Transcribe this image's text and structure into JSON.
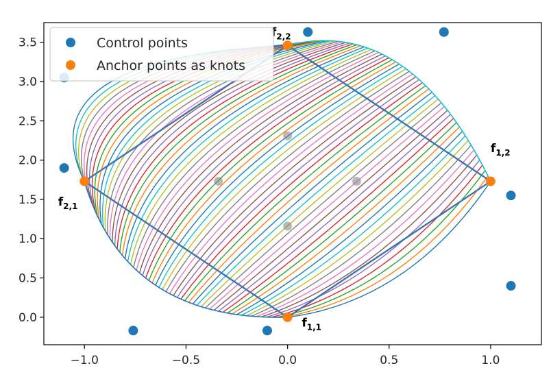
{
  "chart_data": {
    "type": "scatter",
    "title": "",
    "xlabel": "",
    "ylabel": "",
    "xlim": [
      -1.2,
      1.25
    ],
    "ylim": [
      -0.35,
      3.75
    ],
    "x_ticks": [
      -1.0,
      -0.5,
      0.0,
      0.5,
      1.0
    ],
    "x_tick_labels": [
      "−1.0",
      "−0.5",
      "0.0",
      "0.5",
      "1.0"
    ],
    "y_ticks": [
      0.0,
      0.5,
      1.0,
      1.5,
      2.0,
      2.5,
      3.0,
      3.5
    ],
    "y_tick_labels": [
      "0.0",
      "0.5",
      "1.0",
      "1.5",
      "2.0",
      "2.5",
      "3.0",
      "3.5"
    ],
    "grid": false,
    "legend": {
      "placement": "top-left",
      "entries": [
        {
          "label": "Control points",
          "color": "#1f77b4"
        },
        {
          "label": "Anchor points as knots",
          "color": "#ff7f0e"
        }
      ]
    },
    "series": [
      {
        "name": "Control points",
        "color": "#1f77b4",
        "points": [
          [
            -1.1,
            3.05
          ],
          [
            -1.1,
            1.9
          ],
          [
            -0.76,
            -0.17
          ],
          [
            -0.1,
            -0.17
          ],
          [
            0.1,
            3.63
          ],
          [
            0.77,
            3.63
          ],
          [
            1.1,
            1.55
          ],
          [
            1.1,
            0.4
          ]
        ]
      },
      {
        "name": "Anchor points as knots",
        "color": "#ff7f0e",
        "points": [
          [
            0.0,
            0.0
          ],
          [
            1.0,
            1.73
          ],
          [
            0.0,
            3.46
          ],
          [
            -1.0,
            1.73
          ]
        ]
      }
    ],
    "interior_points": [
      [
        -0.34,
        1.73
      ],
      [
        0.0,
        2.31
      ],
      [
        0.34,
        1.73
      ],
      [
        0.0,
        1.16
      ]
    ],
    "anchor_outline": [
      [
        0.0,
        0.0
      ],
      [
        1.0,
        1.73
      ],
      [
        0.0,
        3.46
      ],
      [
        -1.0,
        1.73
      ],
      [
        0.0,
        0.0
      ]
    ],
    "patch": {
      "corner_f11": [
        0.0,
        0.0
      ],
      "corner_f12": [
        1.0,
        1.73
      ],
      "corner_f22": [
        0.0,
        3.46
      ],
      "corner_f21": [
        -1.0,
        1.73
      ],
      "edge_f11_f12_control": [
        0.6,
        0.2
      ],
      "edge_f11_f21_control": [
        -0.8,
        -0.05
      ],
      "edge_f12_f22_control": [
        0.6,
        3.85
      ],
      "edge_f21_f22_control": [
        -1.3,
        3.3
      ],
      "curve_count": 60
    },
    "annotations": [
      {
        "base": "f",
        "sub": "1,1",
        "at": [
          0.07,
          -0.12
        ]
      },
      {
        "base": "f",
        "sub": "1,2",
        "at": [
          1.0,
          2.1
        ]
      },
      {
        "base": "f",
        "sub": "2,2",
        "at": [
          -0.08,
          3.58
        ]
      },
      {
        "base": "f",
        "sub": "2,1",
        "at": [
          -1.13,
          1.42
        ]
      }
    ],
    "curve_colors": [
      "#1f77b4",
      "#ff7f0e",
      "#2ca02c",
      "#d62728",
      "#9467bd",
      "#8c564b",
      "#e377c2",
      "#7f7f7f",
      "#bcbd22",
      "#17becf"
    ],
    "outline_color": "#3b74b0",
    "interior_point_color": "#7f7f7f"
  }
}
